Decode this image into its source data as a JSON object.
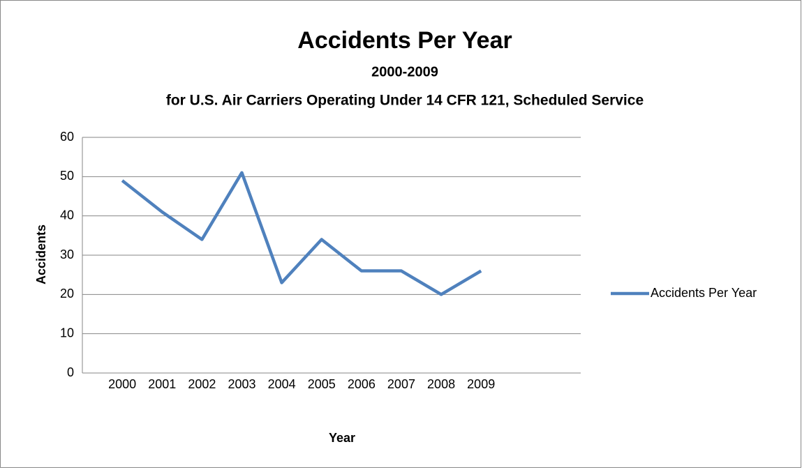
{
  "chart_data": {
    "type": "line",
    "title": "Accidents Per Year",
    "subtitle": "2000-2009",
    "subtitle2": "for U.S. Air Carriers Operating Under 14 CFR 121, Scheduled Service",
    "x_label": "Year",
    "y_label": "Accidents",
    "x": [
      2000,
      2001,
      2002,
      2003,
      2004,
      2005,
      2006,
      2007,
      2008,
      2009
    ],
    "xlim": [
      1999,
      2011.5
    ],
    "xticks": [
      2000,
      2001,
      2002,
      2003,
      2004,
      2005,
      2006,
      2007,
      2008,
      2009
    ],
    "ylim": [
      0,
      60
    ],
    "yticks": [
      0,
      10,
      20,
      30,
      40,
      50,
      60
    ],
    "grid": true,
    "legend": "right",
    "series": [
      {
        "name": "Accidents Per Year",
        "color": "#4f81bd",
        "values": [
          49,
          41,
          34,
          51,
          23,
          34,
          26,
          26,
          20,
          26
        ]
      }
    ]
  }
}
